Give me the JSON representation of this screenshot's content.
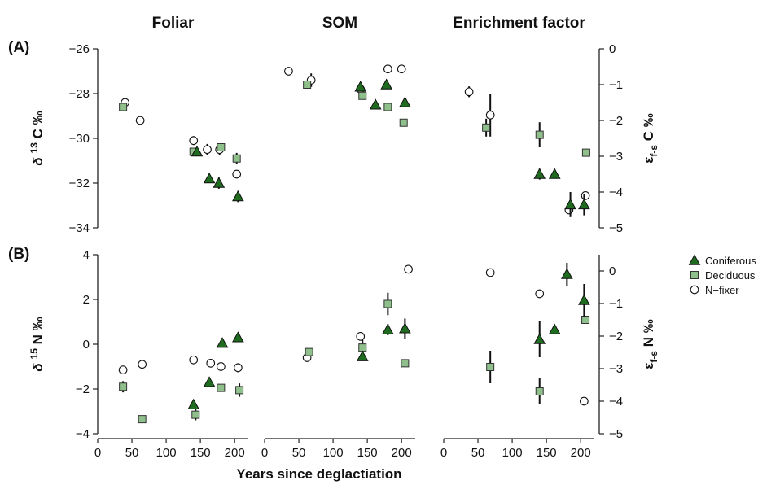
{
  "chart_data": {
    "type": "scatter",
    "column_titles": [
      "Foliar",
      "SOM",
      "Enrichment factor"
    ],
    "panel_labels": [
      "(A)",
      "(B)"
    ],
    "xlabel": "Years since deglactiation",
    "xlim": [
      0,
      220
    ],
    "xticks": [
      0,
      50,
      100,
      150,
      200
    ],
    "left_ylabels": {
      "A": {
        "delta": "δ",
        "sup": "13",
        "rest": "C ‰"
      },
      "B": {
        "delta": "δ",
        "sup": "15",
        "rest": "N ‰"
      }
    },
    "right_ylabels": {
      "A": {
        "eps": "ε",
        "sub": "f-s",
        "rest": "C ‰"
      },
      "B": {
        "eps": "ε",
        "sub": "f-s",
        "rest": "N ‰"
      }
    },
    "left_ylim": {
      "A": [
        -34,
        -26
      ],
      "B": [
        -4,
        4
      ]
    },
    "left_yticks": {
      "A": [
        -34,
        -32,
        -30,
        -28,
        -26
      ],
      "B": [
        -4,
        -2,
        0,
        2,
        4
      ]
    },
    "right_ylim": {
      "A": [
        -5,
        0
      ],
      "B": [
        -5,
        0.5
      ]
    },
    "right_yticks": {
      "A": [
        -5,
        -4,
        -3,
        -2,
        -1,
        0
      ],
      "B": [
        -5,
        -4,
        -3,
        -2,
        -1,
        0
      ]
    },
    "legend": {
      "placement": "right",
      "entries": [
        {
          "label": "Coniferous",
          "shape": "triangle",
          "color": "#1f6b1f"
        },
        {
          "label": "Deciduous",
          "shape": "square",
          "color": "#8fbf8a"
        },
        {
          "label": "N−fixer",
          "shape": "circle",
          "color": "#ffffff"
        }
      ]
    },
    "panels": [
      {
        "row": "A",
        "col": 0,
        "series": [
          {
            "type": "Coniferous",
            "points": [
              [
                145,
                -30.6,
                0.2
              ],
              [
                163,
                -31.8,
                0
              ],
              [
                177,
                -32.0,
                0.25
              ],
              [
                205,
                -32.6,
                0.25
              ]
            ]
          },
          {
            "type": "Deciduous",
            "points": [
              [
                37,
                -28.6,
                0
              ],
              [
                140,
                -30.6,
                0
              ],
              [
                180,
                -30.4,
                0
              ],
              [
                203,
                -30.9,
                0.25
              ]
            ]
          },
          {
            "type": "N−fixer",
            "points": [
              [
                40,
                -28.4,
                0
              ],
              [
                62,
                -29.2,
                0
              ],
              [
                140,
                -30.1,
                0.2
              ],
              [
                160,
                -30.5,
                0.25
              ],
              [
                178,
                -30.5,
                0.25
              ],
              [
                203,
                -31.6,
                0
              ]
            ]
          }
        ]
      },
      {
        "row": "A",
        "col": 1,
        "series": [
          {
            "type": "Coniferous",
            "points": [
              [
                140,
                -27.7,
                0
              ],
              [
                162,
                -28.5,
                0
              ],
              [
                178,
                -27.6,
                0
              ],
              [
                205,
                -28.4,
                0
              ]
            ]
          },
          {
            "type": "Deciduous",
            "points": [
              [
                62,
                -27.6,
                0
              ],
              [
                143,
                -28.1,
                0
              ],
              [
                180,
                -28.6,
                0
              ],
              [
                203,
                -29.3,
                0
              ]
            ]
          },
          {
            "type": "N−fixer",
            "points": [
              [
                35,
                -27.0,
                0
              ],
              [
                68,
                -27.4,
                0.3
              ],
              [
                140,
                -27.8,
                0
              ],
              [
                180,
                -26.9,
                0
              ],
              [
                200,
                -26.9,
                0
              ]
            ]
          }
        ]
      },
      {
        "row": "A",
        "col": 2,
        "series": [
          {
            "type": "Coniferous",
            "points": [
              [
                140,
                -3.5,
                0.15
              ],
              [
                162,
                -3.5,
                0.12
              ],
              [
                185,
                -4.35,
                0.35
              ],
              [
                205,
                -4.35,
                0.3
              ]
            ]
          },
          {
            "type": "Deciduous",
            "points": [
              [
                62,
                -2.2,
                0.25
              ],
              [
                140,
                -2.4,
                0.35
              ],
              [
                208,
                -2.9,
                0
              ]
            ]
          },
          {
            "type": "N−fixer",
            "points": [
              [
                37,
                -1.2,
                0.15
              ],
              [
                68,
                -1.85,
                0.6
              ],
              [
                183,
                -4.5,
                0.1
              ],
              [
                207,
                -4.1,
                0
              ]
            ]
          }
        ]
      },
      {
        "row": "B",
        "col": 0,
        "series": [
          {
            "type": "Coniferous",
            "points": [
              [
                140,
                -2.7,
                0.2
              ],
              [
                163,
                -1.7,
                0.2
              ],
              [
                182,
                0.05,
                0
              ],
              [
                205,
                0.3,
                0
              ]
            ]
          },
          {
            "type": "Deciduous",
            "points": [
              [
                37,
                -1.9,
                0.25
              ],
              [
                65,
                -3.35,
                0
              ],
              [
                143,
                -3.15,
                0.25
              ],
              [
                180,
                -1.95,
                0
              ],
              [
                207,
                -2.05,
                0.3
              ]
            ]
          },
          {
            "type": "N−fixer",
            "points": [
              [
                37,
                -1.15,
                0
              ],
              [
                65,
                -0.9,
                0
              ],
              [
                140,
                -0.7,
                0
              ],
              [
                165,
                -0.85,
                0
              ],
              [
                180,
                -1.0,
                0
              ],
              [
                205,
                -1.05,
                0.2
              ]
            ]
          }
        ]
      },
      {
        "row": "B",
        "col": 1,
        "series": [
          {
            "type": "Coniferous",
            "points": [
              [
                143,
                -0.55,
                0
              ],
              [
                180,
                0.65,
                0.25
              ],
              [
                205,
                0.7,
                0.45
              ]
            ]
          },
          {
            "type": "Deciduous",
            "points": [
              [
                65,
                -0.35,
                0.15
              ],
              [
                143,
                -0.15,
                0.35
              ],
              [
                180,
                1.8,
                0.5
              ],
              [
                205,
                -0.85,
                0
              ]
            ]
          },
          {
            "type": "N−fixer",
            "points": [
              [
                62,
                -0.6,
                0.1
              ],
              [
                140,
                0.35,
                0
              ],
              [
                210,
                3.35,
                0
              ]
            ]
          }
        ]
      },
      {
        "row": "B",
        "col": 2,
        "series": [
          {
            "type": "Coniferous",
            "points": [
              [
                140,
                -2.1,
                0.55
              ],
              [
                162,
                -1.8,
                0.1
              ],
              [
                180,
                -0.1,
                0.35
              ],
              [
                205,
                -0.9,
                0.5
              ]
            ]
          },
          {
            "type": "Deciduous",
            "points": [
              [
                68,
                -2.95,
                0.5
              ],
              [
                140,
                -3.7,
                0.4
              ],
              [
                207,
                -1.5,
                0
              ]
            ]
          },
          {
            "type": "N−fixer",
            "points": [
              [
                68,
                -0.05,
                0.1
              ],
              [
                140,
                -0.7,
                0
              ],
              [
                205,
                -4.0,
                0
              ]
            ]
          }
        ]
      }
    ]
  }
}
